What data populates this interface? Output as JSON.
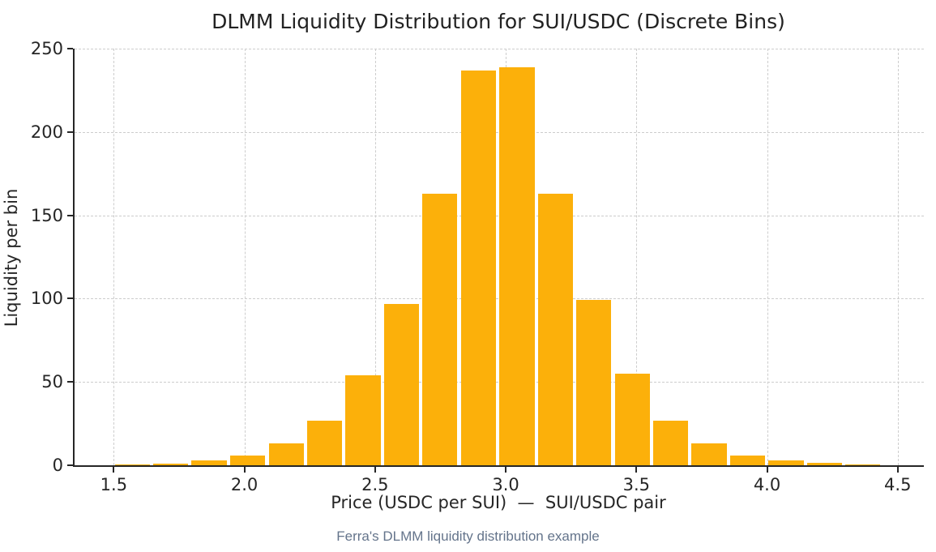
{
  "title": "DLMM Liquidity Distribution for SUI/USDC (Discrete Bins)",
  "caption": "Ferra's DLMM liquidity distribution example",
  "chart_data": {
    "type": "bar",
    "title": "DLMM Liquidity Distribution for SUI/USDC (Discrete Bins)",
    "xlabel": "Price (USDC per SUI)  —  SUI/USDC pair",
    "ylabel": "Liquidity per bin",
    "x": [
      1.571,
      1.718,
      1.865,
      2.013,
      2.16,
      2.307,
      2.454,
      2.601,
      2.748,
      2.895,
      3.043,
      3.19,
      3.337,
      3.484,
      3.631,
      3.778,
      3.925,
      4.073,
      4.22,
      4.367
    ],
    "values": [
      0.6,
      1.2,
      3,
      6,
      13,
      27,
      54,
      97,
      163,
      237,
      239,
      163,
      99,
      55,
      27,
      13,
      6,
      3,
      1.3,
      0.5
    ],
    "bar_width": 0.134,
    "xlim": [
      1.35,
      4.6
    ],
    "ylim": [
      0,
      250
    ],
    "xticks": [
      {
        "value": 1.5,
        "label": "1.5"
      },
      {
        "value": 2.0,
        "label": "2.0"
      },
      {
        "value": 2.5,
        "label": "2.5"
      },
      {
        "value": 3.0,
        "label": "3.0"
      },
      {
        "value": 3.5,
        "label": "3.5"
      },
      {
        "value": 4.0,
        "label": "4.0"
      },
      {
        "value": 4.5,
        "label": "4.5"
      }
    ],
    "yticks": [
      {
        "value": 0,
        "label": "0"
      },
      {
        "value": 50,
        "label": "50"
      },
      {
        "value": 100,
        "label": "100"
      },
      {
        "value": 150,
        "label": "150"
      },
      {
        "value": 200,
        "label": "200"
      },
      {
        "value": 250,
        "label": "250"
      }
    ],
    "grid": true,
    "grid_style": "dashed",
    "legend": "none",
    "bar_color": "#FCB00A",
    "grid_color": "#cdcdcd",
    "axis_color": "#262626",
    "caption_color": "#64748b"
  }
}
